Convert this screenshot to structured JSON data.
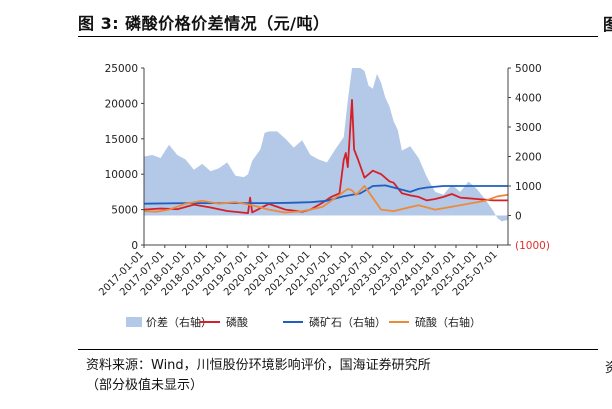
{
  "header": {
    "title": "图 3:  磷酸价格价差情况（元/吨）",
    "next_figure_fragment": "图"
  },
  "source": {
    "line1": "资料来源：Wind，川恒股份环境影响评价，国海证券研究所",
    "line2": "（部分极值未显示）",
    "next_column_fragment": "资"
  },
  "chart_data": {
    "type": "combo",
    "left_axis": {
      "ylim": [
        0,
        25000
      ],
      "ticks": [
        0,
        5000,
        10000,
        15000,
        20000,
        25000
      ],
      "tick_labels": [
        "0",
        "5000",
        "10000",
        "15000",
        "20000",
        "25000"
      ]
    },
    "right_axis": {
      "ylim": [
        -1000,
        5000
      ],
      "ticks": [
        -1000,
        0,
        1000,
        2000,
        3000,
        4000,
        5000
      ],
      "tick_labels": [
        "(1000)",
        "0",
        "1000",
        "2000",
        "3000",
        "4000",
        "5000"
      ],
      "negative_color": "#e03030"
    },
    "x_range": [
      2017.0,
      2025.75
    ],
    "x_tick_years": [
      2017.0,
      2017.5,
      2018.0,
      2018.5,
      2019.0,
      2019.5,
      2020.0,
      2020.5,
      2021.0,
      2021.5,
      2022.0,
      2022.5,
      2023.0,
      2023.5,
      2024.0,
      2024.5,
      2025.0,
      2025.5
    ],
    "x_tick_labels": [
      "2017-01-01",
      "2017-07-01",
      "2018-01-01",
      "2018-07-01",
      "2019-01-01",
      "2019-07-01",
      "2020-01-01",
      "2020-07-01",
      "2021-01-01",
      "2021-07-01",
      "2022-01-01",
      "2022-07-01",
      "2023-01-01",
      "2023-07-01",
      "2024-01-01",
      "2024-07-01",
      "2025-01-01",
      "2025-07-01"
    ],
    "legend": [
      "价差（右轴）",
      "磷酸",
      "磷矿石（右轴）",
      "硫酸（右轴）"
    ],
    "legend_position": "bottom",
    "series": [
      {
        "name": "价差（右轴）",
        "kind": "area",
        "axis": "right",
        "color": "#b4c9e8",
        "x": [
          2017.0,
          2017.2,
          2017.4,
          2017.6,
          2017.8,
          2018.0,
          2018.2,
          2018.4,
          2018.6,
          2018.8,
          2019.0,
          2019.2,
          2019.4,
          2019.5,
          2019.6,
          2019.8,
          2019.9,
          2020.0,
          2020.2,
          2020.4,
          2020.6,
          2020.8,
          2021.0,
          2021.2,
          2021.4,
          2021.6,
          2021.8,
          2021.9,
          2022.0,
          2022.1,
          2022.2,
          2022.3,
          2022.4,
          2022.5,
          2022.6,
          2022.7,
          2022.8,
          2022.9,
          2023.0,
          2023.1,
          2023.2,
          2023.4,
          2023.6,
          2023.8,
          2024.0,
          2024.2,
          2024.4,
          2024.6,
          2024.8,
          2025.0,
          2025.2,
          2025.4,
          2025.5,
          2025.6,
          2025.75
        ],
        "values": [
          2000,
          2050,
          1950,
          2400,
          2050,
          1900,
          1550,
          1750,
          1500,
          1600,
          1800,
          1350,
          1300,
          1400,
          1850,
          2250,
          2800,
          2850,
          2850,
          2600,
          2300,
          2550,
          2050,
          1900,
          1800,
          2250,
          2650,
          3900,
          5000,
          5000,
          5000,
          4900,
          4400,
          4300,
          4800,
          4500,
          4000,
          3700,
          3200,
          2900,
          2200,
          2350,
          1950,
          1300,
          800,
          700,
          1050,
          800,
          1150,
          900,
          550,
          150,
          -100,
          -200,
          -150
        ]
      },
      {
        "name": "磷酸",
        "kind": "line",
        "axis": "left",
        "color": "#d62028",
        "x": [
          2017.0,
          2017.4,
          2017.8,
          2018.2,
          2018.6,
          2019.0,
          2019.5,
          2019.55,
          2019.6,
          2020.0,
          2020.4,
          2020.8,
          2021.0,
          2021.3,
          2021.5,
          2021.7,
          2021.8,
          2021.85,
          2021.9,
          2022.0,
          2022.05,
          2022.15,
          2022.3,
          2022.5,
          2022.7,
          2022.9,
          2023.0,
          2023.2,
          2023.4,
          2023.6,
          2023.8,
          2024.0,
          2024.2,
          2024.4,
          2024.6,
          2024.8,
          2025.0,
          2025.2,
          2025.4,
          2025.75
        ],
        "values": [
          5000,
          5150,
          5050,
          5700,
          5300,
          4800,
          4500,
          6700,
          4600,
          5800,
          5000,
          4700,
          5000,
          6000,
          6800,
          7300,
          12000,
          13000,
          11000,
          20500,
          13500,
          12000,
          9500,
          10500,
          10000,
          9000,
          8800,
          7300,
          7000,
          6800,
          6300,
          6500,
          6800,
          7200,
          6700,
          6600,
          6500,
          6400,
          6300,
          6300
        ]
      },
      {
        "name": "磷矿石（右轴）",
        "kind": "line",
        "axis": "right",
        "color": "#1f5fbf",
        "x": [
          2017.0,
          2018.0,
          2019.0,
          2020.0,
          2020.5,
          2021.0,
          2021.4,
          2021.8,
          2022.2,
          2022.5,
          2022.8,
          2023.0,
          2023.4,
          2023.6,
          2023.8,
          2024.2,
          2024.8,
          2025.75
        ],
        "values": [
          400,
          420,
          420,
          420,
          430,
          450,
          500,
          650,
          750,
          1000,
          1020,
          950,
          800,
          900,
          950,
          1000,
          1000,
          1000
        ]
      },
      {
        "name": "硫酸（右轴）",
        "kind": "line",
        "axis": "right",
        "color": "#ed8a3a",
        "x": [
          2017.0,
          2017.3,
          2017.6,
          2018.0,
          2018.4,
          2018.8,
          2019.2,
          2019.6,
          2020.0,
          2020.4,
          2020.8,
          2021.0,
          2021.3,
          2021.6,
          2021.9,
          2022.0,
          2022.1,
          2022.3,
          2022.5,
          2022.7,
          2023.0,
          2023.3,
          2023.6,
          2024.0,
          2024.4,
          2024.8,
          2025.2,
          2025.5,
          2025.75
        ],
        "values": [
          150,
          130,
          200,
          400,
          500,
          400,
          450,
          350,
          200,
          100,
          150,
          200,
          300,
          600,
          900,
          850,
          700,
          1000,
          600,
          200,
          150,
          250,
          350,
          200,
          300,
          400,
          500,
          650,
          700
        ]
      }
    ]
  }
}
